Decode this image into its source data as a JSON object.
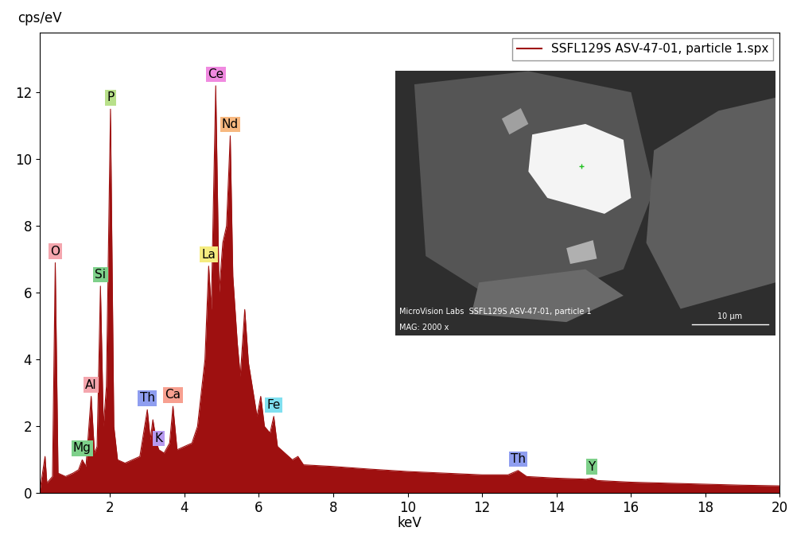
{
  "chart_data": {
    "type": "area",
    "y_label": "cps/eV",
    "x_label": "keV",
    "xlim": [
      0.1,
      20
    ],
    "xticks": [
      2,
      4,
      6,
      8,
      10,
      12,
      14,
      16,
      18,
      20
    ],
    "ylim": [
      0,
      13.8
    ],
    "yticks": [
      0,
      2,
      4,
      6,
      8,
      10,
      12
    ],
    "legend": "upper right",
    "series": [
      {
        "name": "SSFL129S ASV-47-01, particle 1.spx",
        "color": "#9e1010",
        "x": [
          0.1,
          0.25,
          0.3,
          0.45,
          0.525,
          0.6,
          0.8,
          1.0,
          1.15,
          1.25,
          1.35,
          1.49,
          1.58,
          1.65,
          1.74,
          1.82,
          1.9,
          2.01,
          2.1,
          2.2,
          2.4,
          2.6,
          2.8,
          3.0,
          3.08,
          3.15,
          3.25,
          3.31,
          3.45,
          3.6,
          3.69,
          3.8,
          4.0,
          4.2,
          4.35,
          4.45,
          4.55,
          4.65,
          4.72,
          4.84,
          4.93,
          5.03,
          5.13,
          5.23,
          5.3,
          5.42,
          5.5,
          5.62,
          5.72,
          5.85,
          5.95,
          6.05,
          6.15,
          6.3,
          6.4,
          6.5,
          6.7,
          6.9,
          7.05,
          7.2,
          8,
          9,
          10,
          11,
          12,
          12.7,
          12.97,
          13.2,
          14,
          14.8,
          14.95,
          15.1,
          16,
          17,
          18,
          19,
          20
        ],
        "values": [
          0,
          1.1,
          0.3,
          0.5,
          6.9,
          0.6,
          0.5,
          0.6,
          0.7,
          1.0,
          0.8,
          2.9,
          1.2,
          1.4,
          6.2,
          2.0,
          3.2,
          11.5,
          2.0,
          1.0,
          0.9,
          1.0,
          1.1,
          2.5,
          1.6,
          2.2,
          1.5,
          1.3,
          1.2,
          1.5,
          2.6,
          1.3,
          1.4,
          1.5,
          2.0,
          3.0,
          4.0,
          6.8,
          5.5,
          12.2,
          6.0,
          7.5,
          8.0,
          10.7,
          6.5,
          4.5,
          3.5,
          5.5,
          3.9,
          3.0,
          2.3,
          2.9,
          2.0,
          1.8,
          2.3,
          1.4,
          1.2,
          1.0,
          1.1,
          0.85,
          0.8,
          0.72,
          0.65,
          0.6,
          0.55,
          0.55,
          0.68,
          0.5,
          0.45,
          0.42,
          0.45,
          0.38,
          0.33,
          0.3,
          0.27,
          0.24,
          0.22
        ]
      }
    ],
    "peaks": [
      {
        "label": "O",
        "x": 0.525,
        "y": 6.9,
        "color": "#f4a6ae"
      },
      {
        "label": "Mg",
        "x": 1.25,
        "y": 1.0,
        "color": "#7ed08a"
      },
      {
        "label": "Al",
        "x": 1.49,
        "y": 2.9,
        "color": "#f4a6ae"
      },
      {
        "label": "Si",
        "x": 1.74,
        "y": 6.2,
        "color": "#7ed08a"
      },
      {
        "label": "P",
        "x": 2.01,
        "y": 11.5,
        "color": "#b8e08a"
      },
      {
        "label": "Th",
        "x": 3.0,
        "y": 2.5,
        "color": "#8f9ef0"
      },
      {
        "label": "K",
        "x": 3.31,
        "y": 1.3,
        "color": "#b79af0"
      },
      {
        "label": "Ca",
        "x": 3.69,
        "y": 2.6,
        "color": "#f7a090"
      },
      {
        "label": "La",
        "x": 4.65,
        "y": 6.8,
        "color": "#f5ec80"
      },
      {
        "label": "Ce",
        "x": 4.84,
        "y": 12.2,
        "color": "#f08ae0"
      },
      {
        "label": "Nd",
        "x": 5.23,
        "y": 10.7,
        "color": "#f7b880"
      },
      {
        "label": "Fe",
        "x": 6.4,
        "y": 2.3,
        "color": "#80e0f0"
      },
      {
        "label": "Th",
        "x": 12.97,
        "y": 0.68,
        "color": "#8f9ef0"
      },
      {
        "label": "Y",
        "x": 14.95,
        "y": 0.45,
        "color": "#7ed08a"
      }
    ]
  },
  "inset": {
    "caption": "MicroVision Labs  SSFL129S ASV-47-01, particle 1",
    "magnification": "MAG: 2000 x",
    "scale_bar": "10 μm"
  }
}
